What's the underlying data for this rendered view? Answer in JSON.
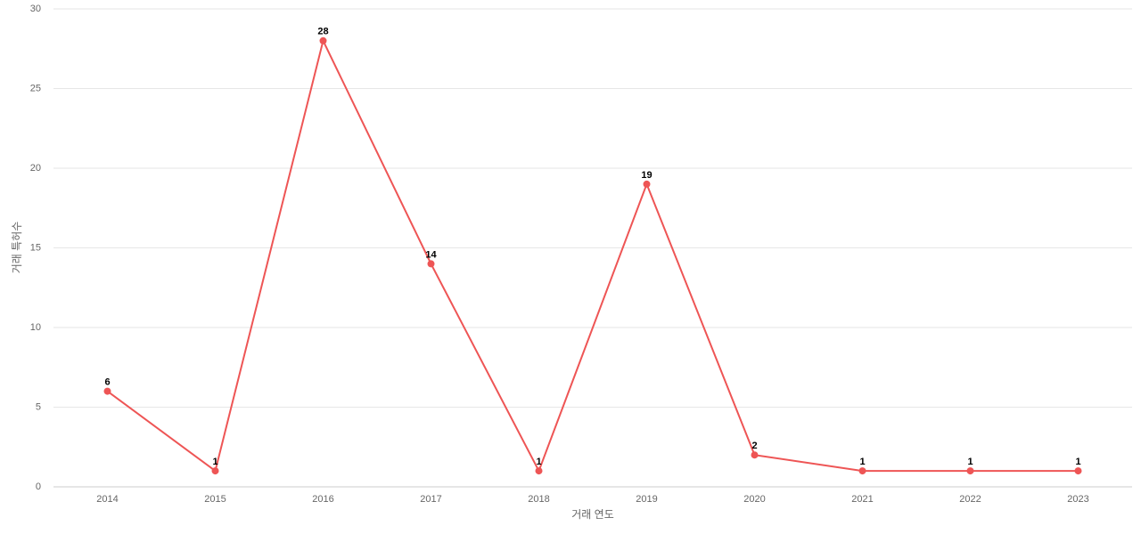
{
  "chart_data": {
    "type": "line",
    "x_label": "거래 연도",
    "y_label": "거래 특허수",
    "categories": [
      "2014",
      "2015",
      "2016",
      "2017",
      "2018",
      "2019",
      "2020",
      "2021",
      "2022",
      "2023"
    ],
    "values": [
      6,
      1,
      28,
      14,
      1,
      19,
      2,
      1,
      1,
      1
    ],
    "color": "#ee5555",
    "ylim": [
      0,
      30
    ],
    "yticks": [
      0,
      5,
      10,
      15,
      20,
      25,
      30
    ],
    "grid": true
  }
}
